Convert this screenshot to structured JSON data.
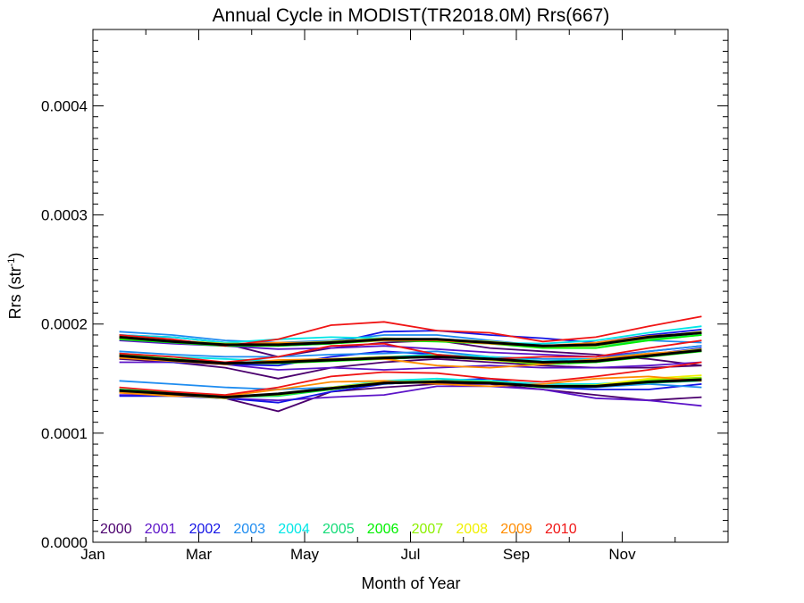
{
  "chart_data": {
    "type": "line",
    "title": "Annual Cycle in MODIST(TR2018.0M) Rrs(667)",
    "xlabel": "Month of Year",
    "ylabel_main": "Rrs (str",
    "ylabel_sup": "-1",
    "ylabel_close": ")",
    "xlim": [
      0,
      12
    ],
    "ylim": [
      0,
      0.00047
    ],
    "x_ticks": [
      {
        "value": 0,
        "label": "Jan"
      },
      {
        "value": 2,
        "label": "Mar"
      },
      {
        "value": 4,
        "label": "May"
      },
      {
        "value": 6,
        "label": "Jul"
      },
      {
        "value": 8,
        "label": "Sep"
      },
      {
        "value": 10,
        "label": "Nov"
      }
    ],
    "y_ticks": [
      {
        "value": 0,
        "label": "0.0000"
      },
      {
        "value": 0.0001,
        "label": "0.0001"
      },
      {
        "value": 0.0002,
        "label": "0.0002"
      },
      {
        "value": 0.0003,
        "label": "0.0003"
      },
      {
        "value": 0.0004,
        "label": "0.0004"
      }
    ],
    "x": [
      0.5,
      1.5,
      2.5,
      3.5,
      4.5,
      5.5,
      6.5,
      7.5,
      8.5,
      9.5,
      10.5,
      11.5
    ],
    "series": [
      {
        "name": "2000",
        "color": "#4b006e",
        "lines": [
          [
            0.00019,
            0.000185,
            0.000182,
            0.00017,
            0.000178,
            0.000183,
            0.000185,
            0.000178,
            0.000175,
            0.000172,
            0.000168,
            0.000162
          ],
          [
            0.000168,
            0.000165,
            0.00016,
            0.00015,
            0.00016,
            0.000165,
            0.000168,
            0.000165,
            0.000162,
            0.00016,
            0.00016,
            0.000162
          ],
          [
            0.000138,
            0.000135,
            0.000132,
            0.00012,
            0.000138,
            0.000142,
            0.000145,
            0.000145,
            0.00014,
            0.000135,
            0.00013,
            0.000133
          ]
        ]
      },
      {
        "name": "2001",
        "color": "#5c14c8",
        "lines": [
          [
            0.000185,
            0.000182,
            0.00018,
            0.000177,
            0.000178,
            0.00018,
            0.000177,
            0.000174,
            0.000172,
            0.00017,
            0.000175,
            0.00018
          ],
          [
            0.000165,
            0.000165,
            0.000163,
            0.000158,
            0.00016,
            0.000158,
            0.00016,
            0.000162,
            0.00016,
            0.00016,
            0.000162,
            0.000165
          ],
          [
            0.000135,
            0.000135,
            0.000132,
            0.00013,
            0.000133,
            0.000135,
            0.000143,
            0.000143,
            0.00014,
            0.000132,
            0.00013,
            0.000125
          ]
        ]
      },
      {
        "name": "2002",
        "color": "#1414e6",
        "lines": [
          [
            0.00019,
            0.000188,
            0.000183,
            0.00018,
            0.000182,
            0.000193,
            0.000194,
            0.00019,
            0.000187,
            0.000183,
            0.00019,
            0.000195
          ],
          [
            0.00017,
            0.000165,
            0.000163,
            0.000162,
            0.00017,
            0.000175,
            0.000172,
            0.000168,
            0.000165,
            0.000165,
            0.000172,
            0.000178
          ],
          [
            0.000134,
            0.000134,
            0.000132,
            0.000128,
            0.000138,
            0.000145,
            0.000148,
            0.00015,
            0.000142,
            0.00014,
            0.00014,
            0.000145
          ]
        ]
      },
      {
        "name": "2003",
        "color": "#1e8cf0",
        "lines": [
          [
            0.000193,
            0.00019,
            0.000185,
            0.000183,
            0.000185,
            0.00019,
            0.00019,
            0.000185,
            0.00018,
            0.00018,
            0.000185,
            0.000183
          ],
          [
            0.000175,
            0.000172,
            0.00017,
            0.00017,
            0.000172,
            0.000173,
            0.000175,
            0.00017,
            0.000168,
            0.000168,
            0.000175,
            0.00018
          ],
          [
            0.000148,
            0.000145,
            0.000142,
            0.00014,
            0.000142,
            0.000145,
            0.000148,
            0.000148,
            0.000142,
            0.000142,
            0.000145,
            0.000142
          ]
        ]
      },
      {
        "name": "2004",
        "color": "#00e6e6",
        "lines": [
          [
            0.00019,
            0.000188,
            0.000183,
            0.000186,
            0.000188,
            0.000187,
            0.000186,
            0.000183,
            0.000182,
            0.000185,
            0.000192,
            0.000198
          ],
          [
            0.000173,
            0.00017,
            0.000168,
            0.000166,
            0.000168,
            0.00017,
            0.000172,
            0.00017,
            0.000166,
            0.000168,
            0.000172,
            0.000176
          ],
          [
            0.00014,
            0.000138,
            0.000134,
            0.000135,
            0.000142,
            0.000148,
            0.00015,
            0.000148,
            0.000145,
            0.000145,
            0.000148,
            0.00015
          ]
        ]
      },
      {
        "name": "2005",
        "color": "#14dc78",
        "lines": [
          [
            0.000188,
            0.000185,
            0.000182,
            0.000182,
            0.000183,
            0.000185,
            0.000186,
            0.000184,
            0.00018,
            0.00018,
            0.000186,
            0.00019
          ],
          [
            0.00017,
            0.000168,
            0.000165,
            0.000165,
            0.000167,
            0.000168,
            0.00017,
            0.000168,
            0.000165,
            0.000167,
            0.000172,
            0.000176
          ],
          [
            0.000138,
            0.000136,
            0.000133,
            0.000134,
            0.00014,
            0.000146,
            0.000148,
            0.000146,
            0.000143,
            0.000143,
            0.000146,
            0.000148
          ]
        ]
      },
      {
        "name": "2006",
        "color": "#00f000",
        "lines": [
          [
            0.000186,
            0.000183,
            0.00018,
            0.00018,
            0.000182,
            0.000185,
            0.000184,
            0.000182,
            0.000178,
            0.000178,
            0.000185,
            0.00019
          ],
          [
            0.000172,
            0.000168,
            0.000164,
            0.000164,
            0.000166,
            0.000168,
            0.00017,
            0.000167,
            0.000163,
            0.000165,
            0.00017,
            0.000175
          ],
          [
            0.00014,
            0.000137,
            0.000134,
            0.000135,
            0.00014,
            0.000146,
            0.000147,
            0.000146,
            0.000142,
            0.000143,
            0.000148,
            0.00015
          ]
        ]
      },
      {
        "name": "2007",
        "color": "#8cf000",
        "lines": [
          [
            0.000187,
            0.000184,
            0.000181,
            0.000181,
            0.000183,
            0.000186,
            0.000185,
            0.000183,
            0.000179,
            0.00018,
            0.000187,
            0.000192
          ],
          [
            0.000171,
            0.000167,
            0.000164,
            0.000165,
            0.000167,
            0.000169,
            0.000171,
            0.000168,
            0.000164,
            0.000166,
            0.000171,
            0.000176
          ],
          [
            0.000139,
            0.000136,
            0.000133,
            0.000135,
            0.000141,
            0.000147,
            0.000148,
            0.000147,
            0.000143,
            0.000144,
            0.000149,
            0.000151
          ]
        ]
      },
      {
        "name": "2008",
        "color": "#f0f000",
        "lines": [
          [
            0.000189,
            0.000185,
            0.000182,
            0.000182,
            0.000184,
            0.000187,
            0.000186,
            0.000184,
            0.00018,
            0.000181,
            0.000188,
            0.000193
          ],
          [
            0.00017,
            0.000167,
            0.000163,
            0.000166,
            0.000168,
            0.00017,
            0.00017,
            0.000167,
            0.000164,
            0.000166,
            0.000172,
            0.000177
          ],
          [
            0.000138,
            0.000135,
            0.000132,
            0.000136,
            0.000142,
            0.000147,
            0.000147,
            0.000146,
            0.000143,
            0.000144,
            0.00015,
            0.000153
          ]
        ]
      },
      {
        "name": "2009",
        "color": "#ff8c00",
        "lines": [
          [
            0.000188,
            0.000184,
            0.000181,
            0.000183,
            0.000183,
            0.000185,
            0.000185,
            0.000182,
            0.00018,
            0.000183,
            0.000189,
            0.000192
          ],
          [
            0.000169,
            0.000166,
            0.000163,
            0.000167,
            0.000168,
            0.000168,
            0.000162,
            0.00016,
            0.000163,
            0.000168,
            0.000173,
            0.000176
          ],
          [
            0.000137,
            0.000134,
            0.000134,
            0.00014,
            0.000147,
            0.000148,
            0.000145,
            0.000143,
            0.000145,
            0.00015,
            0.000152,
            0.000148
          ]
        ]
      },
      {
        "name": "2010",
        "color": "#f01414",
        "lines": [
          [
            0.00019,
            0.000186,
            0.00018,
            0.000186,
            0.000199,
            0.000202,
            0.000194,
            0.000192,
            0.000184,
            0.000188,
            0.000198,
            0.000207
          ],
          [
            0.000173,
            0.00017,
            0.000165,
            0.00017,
            0.00018,
            0.000182,
            0.000172,
            0.000168,
            0.00017,
            0.00017,
            0.000178,
            0.000185
          ],
          [
            0.000142,
            0.000138,
            0.000135,
            0.000142,
            0.000152,
            0.000156,
            0.000155,
            0.00015,
            0.000147,
            0.000152,
            0.000158,
            0.000165
          ]
        ]
      }
    ],
    "mean_lines": {
      "color": "#000000",
      "lines": [
        [
          0.000188,
          0.000184,
          0.000181,
          0.000181,
          0.000183,
          0.000186,
          0.000186,
          0.000183,
          0.00018,
          0.000181,
          0.000188,
          0.000192
        ],
        [
          0.000171,
          0.000167,
          0.000164,
          0.000165,
          0.000167,
          0.000169,
          0.00017,
          0.000168,
          0.000165,
          0.000166,
          0.000171,
          0.000176
        ],
        [
          0.000139,
          0.000136,
          0.000133,
          0.000136,
          0.000141,
          0.000146,
          0.000147,
          0.000146,
          0.000143,
          0.000143,
          0.000147,
          0.000149
        ]
      ]
    },
    "legend_placement": "bottom-left inside plot"
  }
}
